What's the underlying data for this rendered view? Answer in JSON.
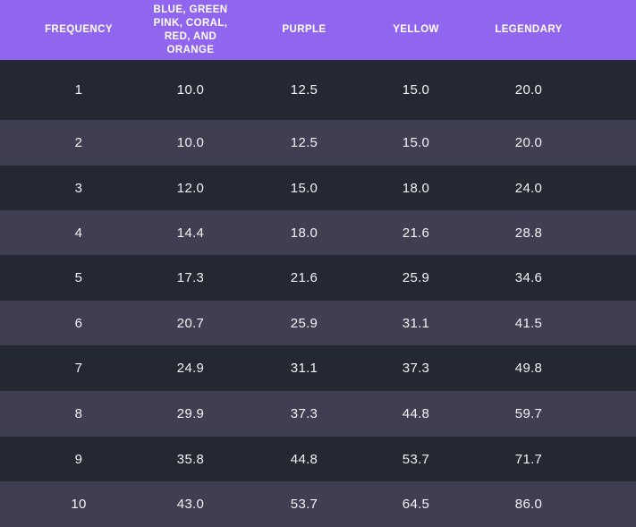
{
  "table": {
    "header": {
      "frequency": "FREQUENCY",
      "blue_green": "BLUE, GREEN\nPINK, CORAL,\nRED, AND\nORANGE",
      "purple": "PURPLE",
      "yellow": "YELLOW",
      "legendary": "LEGENDARY"
    },
    "rows": [
      {
        "frequency": "1",
        "blue_green": "10.0",
        "purple": "12.5",
        "yellow": "15.0",
        "legendary": "20.0"
      },
      {
        "frequency": "2",
        "blue_green": "10.0",
        "purple": "12.5",
        "yellow": "15.0",
        "legendary": "20.0"
      },
      {
        "frequency": "3",
        "blue_green": "12.0",
        "purple": "15.0",
        "yellow": "18.0",
        "legendary": "24.0"
      },
      {
        "frequency": "4",
        "blue_green": "14.4",
        "purple": "18.0",
        "yellow": "21.6",
        "legendary": "28.8"
      },
      {
        "frequency": "5",
        "blue_green": "17.3",
        "purple": "21.6",
        "yellow": "25.9",
        "legendary": "34.6"
      },
      {
        "frequency": "6",
        "blue_green": "20.7",
        "purple": "25.9",
        "yellow": "31.1",
        "legendary": "41.5"
      },
      {
        "frequency": "7",
        "blue_green": "24.9",
        "purple": "31.1",
        "yellow": "37.3",
        "legendary": "49.8"
      },
      {
        "frequency": "8",
        "blue_green": "29.9",
        "purple": "37.3",
        "yellow": "44.8",
        "legendary": "59.7"
      },
      {
        "frequency": "9",
        "blue_green": "35.8",
        "purple": "44.8",
        "yellow": "53.7",
        "legendary": "71.7"
      },
      {
        "frequency": "10",
        "blue_green": "43.0",
        "purple": "53.7",
        "yellow": "64.5",
        "legendary": "86.0"
      }
    ]
  },
  "colors": {
    "header_bg": "#9066ee",
    "row_dark": "#232833",
    "row_light": "#403f51",
    "text": "#f2f2f5"
  }
}
